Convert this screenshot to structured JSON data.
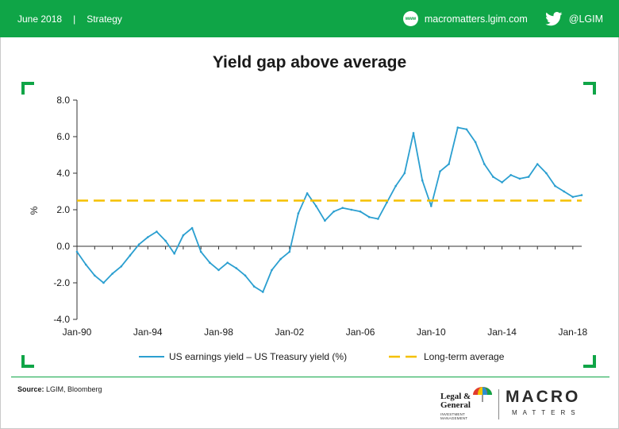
{
  "header": {
    "date": "June 2018",
    "separator": "|",
    "section": "Strategy",
    "website_icon": "www-icon",
    "website": "macromatters.lgim.com",
    "social_icon": "twitter-bird-icon",
    "handle": "@LGIM",
    "bar_color": "#0fa547"
  },
  "source": {
    "label": "Source:",
    "text": " LGIM, Bloomberg"
  },
  "logos": {
    "lg_name_line1": "Legal &",
    "lg_name_line2": "General",
    "lg_tagline": "INVESTMENT MANAGEMENT",
    "macro": "MACRO",
    "matters": "MATTERS"
  },
  "chart_data": {
    "type": "line",
    "title": "Yield gap above average",
    "ylabel": "%",
    "xlabel": "",
    "ylim": [
      -4.0,
      8.0
    ],
    "y_ticks": [
      "8.0",
      "6.0",
      "4.0",
      "2.0",
      "0.0",
      "-2.0",
      "-4.0"
    ],
    "x_ticks": [
      "Jan-90",
      "Jan-94",
      "Jan-98",
      "Jan-02",
      "Jan-06",
      "Jan-10",
      "Jan-14",
      "Jan-18"
    ],
    "xlim": [
      "Jan-90",
      "Jul-18"
    ],
    "grid": false,
    "legend_placement": "bottom",
    "series": [
      {
        "name": "US earnings yield – US Treasury yield (%)",
        "color": "#2b9fd0",
        "style": "solid",
        "points": [
          [
            "Jan-90",
            -0.3
          ],
          [
            "Jul-90",
            -1.0
          ],
          [
            "Jan-91",
            -1.6
          ],
          [
            "Jul-91",
            -2.0
          ],
          [
            "Jan-92",
            -1.5
          ],
          [
            "Jul-92",
            -1.1
          ],
          [
            "Jan-93",
            -0.5
          ],
          [
            "Jul-93",
            0.1
          ],
          [
            "Jan-94",
            0.5
          ],
          [
            "Jul-94",
            0.8
          ],
          [
            "Jan-95",
            0.3
          ],
          [
            "Jul-95",
            -0.4
          ],
          [
            "Jan-96",
            0.6
          ],
          [
            "Jul-96",
            1.0
          ],
          [
            "Jan-97",
            -0.3
          ],
          [
            "Jul-97",
            -0.9
          ],
          [
            "Jan-98",
            -1.3
          ],
          [
            "Jul-98",
            -0.9
          ],
          [
            "Jan-99",
            -1.2
          ],
          [
            "Jul-99",
            -1.6
          ],
          [
            "Jan-00",
            -2.2
          ],
          [
            "Jul-00",
            -2.5
          ],
          [
            "Jan-01",
            -1.3
          ],
          [
            "Jul-01",
            -0.7
          ],
          [
            "Jan-02",
            -0.3
          ],
          [
            "Jul-02",
            1.8
          ],
          [
            "Jan-03",
            2.9
          ],
          [
            "Jul-03",
            2.2
          ],
          [
            "Jan-04",
            1.4
          ],
          [
            "Jul-04",
            1.9
          ],
          [
            "Jan-05",
            2.1
          ],
          [
            "Jul-05",
            2.0
          ],
          [
            "Jan-06",
            1.9
          ],
          [
            "Jul-06",
            1.6
          ],
          [
            "Jan-07",
            1.5
          ],
          [
            "Jul-07",
            2.4
          ],
          [
            "Jan-08",
            3.3
          ],
          [
            "Jul-08",
            4.0
          ],
          [
            "Jan-09",
            6.2
          ],
          [
            "Jul-09",
            3.6
          ],
          [
            "Jan-10",
            2.2
          ],
          [
            "Jul-10",
            4.1
          ],
          [
            "Jan-11",
            4.5
          ],
          [
            "Jul-11",
            6.5
          ],
          [
            "Jan-12",
            6.4
          ],
          [
            "Jul-12",
            5.7
          ],
          [
            "Jan-13",
            4.5
          ],
          [
            "Jul-13",
            3.8
          ],
          [
            "Jan-14",
            3.5
          ],
          [
            "Jul-14",
            3.9
          ],
          [
            "Jan-15",
            3.7
          ],
          [
            "Jul-15",
            3.8
          ],
          [
            "Jan-16",
            4.5
          ],
          [
            "Jul-16",
            4.0
          ],
          [
            "Jan-17",
            3.3
          ],
          [
            "Jul-17",
            3.0
          ],
          [
            "Jan-18",
            2.7
          ],
          [
            "Jul-18",
            2.8
          ]
        ]
      },
      {
        "name": "Long-term average",
        "color": "#f5c000",
        "style": "dashed",
        "value": 2.5
      }
    ]
  }
}
